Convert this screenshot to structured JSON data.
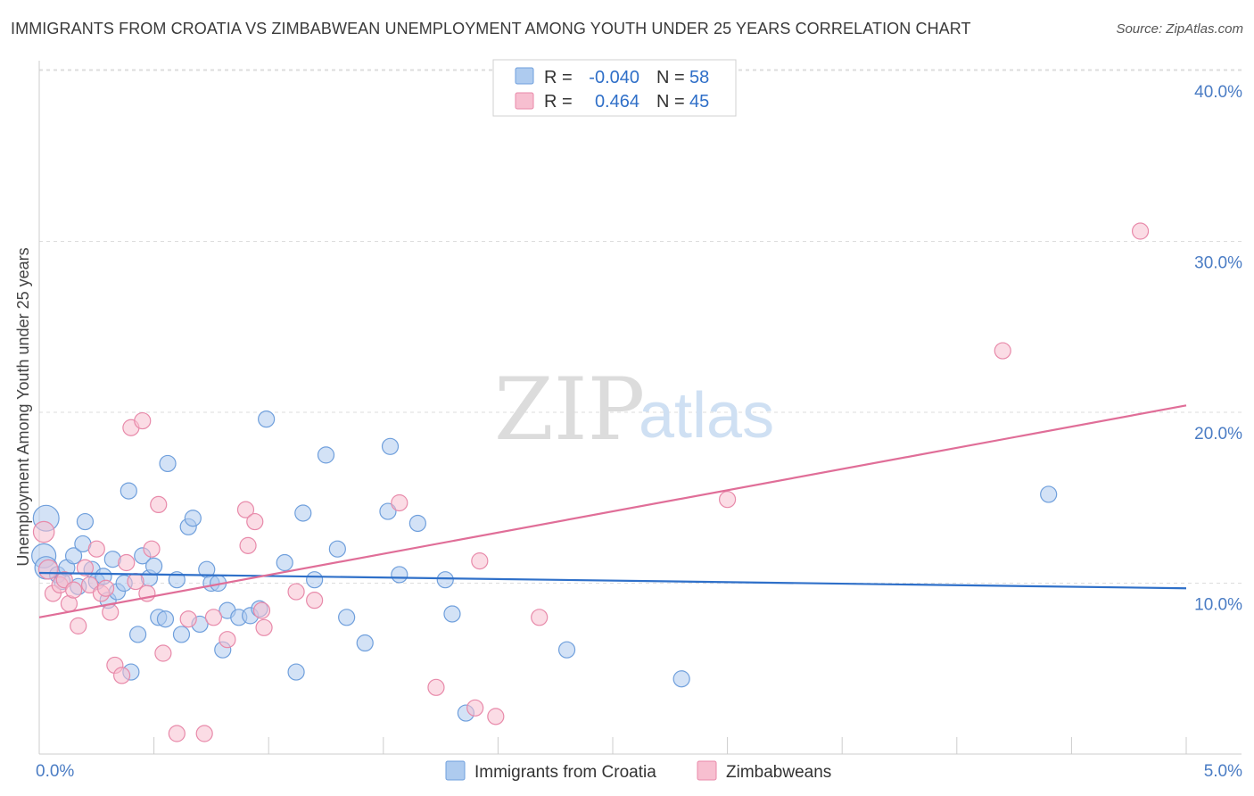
{
  "title": "IMMIGRANTS FROM CROATIA VS ZIMBABWEAN UNEMPLOYMENT AMONG YOUTH UNDER 25 YEARS CORRELATION CHART",
  "source": "Source: ZipAtlas.com",
  "watermark": {
    "zip": "ZIP",
    "atlas": "atlas"
  },
  "colors": {
    "blue_fill": "#aecbef",
    "blue_stroke": "#6f9fdc",
    "blue_line": "#2f70c9",
    "pink_fill": "#f7bfd0",
    "pink_stroke": "#e88aaa",
    "pink_line": "#e06e98",
    "tick_text": "#4a7cc4",
    "grid": "#dddddd"
  },
  "legend": {
    "rows": [
      {
        "r_label": "R =",
        "r_value": "-0.040",
        "n_label": "N =",
        "n_value": "58"
      },
      {
        "r_label": "R =",
        "r_value": "0.464",
        "n_label": "N =",
        "n_value": "45"
      }
    ]
  },
  "chart_data": {
    "type": "scatter",
    "title": "IMMIGRANTS FROM CROATIA VS ZIMBABWEAN UNEMPLOYMENT AMONG YOUTH UNDER 25 YEARS CORRELATION CHART",
    "xlabel": "",
    "ylabel": "Unemployment Among Youth under 25 years",
    "xlim": [
      0,
      5
    ],
    "ylim": [
      0,
      42
    ],
    "x_tick_labels": [
      {
        "value": 0,
        "label": "0.0%"
      },
      {
        "value": 5,
        "label": "5.0%"
      }
    ],
    "y_tick_labels": [
      {
        "value": 10,
        "label": "10.0%"
      },
      {
        "value": 20,
        "label": "20.0%"
      },
      {
        "value": 30,
        "label": "30.0%"
      },
      {
        "value": 40,
        "label": "40.0%"
      }
    ],
    "legend_position": "bottom",
    "series": [
      {
        "name": "Immigrants from Croatia",
        "color_key": "blue",
        "trend": {
          "x": [
            0,
            5
          ],
          "y": [
            10.6,
            9.7
          ]
        },
        "points": [
          {
            "x": 0.03,
            "y": 13.8,
            "s": 1.6
          },
          {
            "x": 0.02,
            "y": 11.6,
            "s": 1.5
          },
          {
            "x": 0.03,
            "y": 10.9,
            "s": 1.4
          },
          {
            "x": 0.08,
            "y": 10.5,
            "s": 1
          },
          {
            "x": 0.1,
            "y": 10.1,
            "s": 1
          },
          {
            "x": 0.12,
            "y": 10.9,
            "s": 1
          },
          {
            "x": 0.15,
            "y": 11.6,
            "s": 1
          },
          {
            "x": 0.17,
            "y": 9.8,
            "s": 1
          },
          {
            "x": 0.19,
            "y": 12.3,
            "s": 1
          },
          {
            "x": 0.2,
            "y": 13.6,
            "s": 1
          },
          {
            "x": 0.23,
            "y": 10.8,
            "s": 1
          },
          {
            "x": 0.25,
            "y": 10.1,
            "s": 1
          },
          {
            "x": 0.28,
            "y": 10.4,
            "s": 1
          },
          {
            "x": 0.3,
            "y": 9.0,
            "s": 1
          },
          {
            "x": 0.32,
            "y": 11.4,
            "s": 1
          },
          {
            "x": 0.34,
            "y": 9.5,
            "s": 1
          },
          {
            "x": 0.37,
            "y": 10.0,
            "s": 1
          },
          {
            "x": 0.39,
            "y": 15.4,
            "s": 1
          },
          {
            "x": 0.43,
            "y": 7.0,
            "s": 1
          },
          {
            "x": 0.45,
            "y": 11.6,
            "s": 1
          },
          {
            "x": 0.48,
            "y": 10.3,
            "s": 1
          },
          {
            "x": 0.5,
            "y": 11.0,
            "s": 1
          },
          {
            "x": 0.52,
            "y": 8.0,
            "s": 1
          },
          {
            "x": 0.55,
            "y": 7.9,
            "s": 1
          },
          {
            "x": 0.4,
            "y": 4.8,
            "s": 1
          },
          {
            "x": 0.6,
            "y": 10.2,
            "s": 1
          },
          {
            "x": 0.62,
            "y": 7.0,
            "s": 1
          },
          {
            "x": 0.65,
            "y": 13.3,
            "s": 1
          },
          {
            "x": 0.67,
            "y": 13.8,
            "s": 1
          },
          {
            "x": 0.56,
            "y": 17.0,
            "s": 1
          },
          {
            "x": 0.7,
            "y": 7.6,
            "s": 1
          },
          {
            "x": 0.73,
            "y": 10.8,
            "s": 1
          },
          {
            "x": 0.75,
            "y": 10.0,
            "s": 1
          },
          {
            "x": 0.78,
            "y": 10.0,
            "s": 1
          },
          {
            "x": 0.8,
            "y": 6.1,
            "s": 1
          },
          {
            "x": 0.82,
            "y": 8.4,
            "s": 1
          },
          {
            "x": 0.87,
            "y": 8.0,
            "s": 1
          },
          {
            "x": 0.92,
            "y": 8.1,
            "s": 1
          },
          {
            "x": 0.96,
            "y": 8.5,
            "s": 1
          },
          {
            "x": 0.99,
            "y": 19.6,
            "s": 1
          },
          {
            "x": 1.07,
            "y": 11.2,
            "s": 1
          },
          {
            "x": 1.12,
            "y": 4.8,
            "s": 1
          },
          {
            "x": 1.15,
            "y": 14.1,
            "s": 1
          },
          {
            "x": 1.2,
            "y": 10.2,
            "s": 1
          },
          {
            "x": 1.25,
            "y": 17.5,
            "s": 1
          },
          {
            "x": 1.3,
            "y": 12.0,
            "s": 1
          },
          {
            "x": 1.34,
            "y": 8.0,
            "s": 1
          },
          {
            "x": 1.42,
            "y": 6.5,
            "s": 1
          },
          {
            "x": 1.52,
            "y": 14.2,
            "s": 1
          },
          {
            "x": 1.53,
            "y": 18.0,
            "s": 1
          },
          {
            "x": 1.57,
            "y": 10.5,
            "s": 1
          },
          {
            "x": 1.65,
            "y": 13.5,
            "s": 1
          },
          {
            "x": 1.77,
            "y": 10.2,
            "s": 1
          },
          {
            "x": 1.8,
            "y": 8.2,
            "s": 1
          },
          {
            "x": 1.86,
            "y": 2.4,
            "s": 1
          },
          {
            "x": 2.3,
            "y": 6.1,
            "s": 1
          },
          {
            "x": 2.8,
            "y": 4.4,
            "s": 1
          },
          {
            "x": 4.4,
            "y": 15.2,
            "s": 1
          }
        ]
      },
      {
        "name": "Zimbabweans",
        "color_key": "pink",
        "trend": {
          "x": [
            0,
            5
          ],
          "y": [
            8.0,
            20.4
          ]
        },
        "points": [
          {
            "x": 0.02,
            "y": 13.0,
            "s": 1.3
          },
          {
            "x": 0.04,
            "y": 10.8,
            "s": 1.2
          },
          {
            "x": 0.06,
            "y": 9.4,
            "s": 1
          },
          {
            "x": 0.09,
            "y": 9.9,
            "s": 1
          },
          {
            "x": 0.11,
            "y": 10.2,
            "s": 1
          },
          {
            "x": 0.13,
            "y": 8.8,
            "s": 1
          },
          {
            "x": 0.15,
            "y": 9.6,
            "s": 1
          },
          {
            "x": 0.17,
            "y": 7.5,
            "s": 1
          },
          {
            "x": 0.2,
            "y": 10.9,
            "s": 1
          },
          {
            "x": 0.22,
            "y": 9.9,
            "s": 1
          },
          {
            "x": 0.25,
            "y": 12.0,
            "s": 1
          },
          {
            "x": 0.27,
            "y": 9.4,
            "s": 1
          },
          {
            "x": 0.29,
            "y": 9.7,
            "s": 1
          },
          {
            "x": 0.31,
            "y": 8.3,
            "s": 1
          },
          {
            "x": 0.33,
            "y": 5.2,
            "s": 1
          },
          {
            "x": 0.36,
            "y": 4.6,
            "s": 1
          },
          {
            "x": 0.38,
            "y": 11.2,
            "s": 1
          },
          {
            "x": 0.4,
            "y": 19.1,
            "s": 1
          },
          {
            "x": 0.42,
            "y": 10.1,
            "s": 1
          },
          {
            "x": 0.45,
            "y": 19.5,
            "s": 1
          },
          {
            "x": 0.47,
            "y": 9.4,
            "s": 1
          },
          {
            "x": 0.49,
            "y": 12.0,
            "s": 1
          },
          {
            "x": 0.52,
            "y": 14.6,
            "s": 1
          },
          {
            "x": 0.54,
            "y": 5.9,
            "s": 1
          },
          {
            "x": 0.6,
            "y": 1.2,
            "s": 1
          },
          {
            "x": 0.65,
            "y": 7.9,
            "s": 1
          },
          {
            "x": 0.72,
            "y": 1.2,
            "s": 1
          },
          {
            "x": 0.76,
            "y": 8.0,
            "s": 1
          },
          {
            "x": 0.82,
            "y": 6.7,
            "s": 1
          },
          {
            "x": 0.9,
            "y": 14.3,
            "s": 1
          },
          {
            "x": 0.91,
            "y": 12.2,
            "s": 1
          },
          {
            "x": 0.94,
            "y": 13.6,
            "s": 1
          },
          {
            "x": 0.97,
            "y": 8.4,
            "s": 1
          },
          {
            "x": 0.98,
            "y": 7.4,
            "s": 1
          },
          {
            "x": 1.12,
            "y": 9.5,
            "s": 1
          },
          {
            "x": 1.2,
            "y": 9.0,
            "s": 1
          },
          {
            "x": 1.57,
            "y": 14.7,
            "s": 1
          },
          {
            "x": 1.73,
            "y": 3.9,
            "s": 1
          },
          {
            "x": 1.9,
            "y": 2.7,
            "s": 1
          },
          {
            "x": 1.92,
            "y": 11.3,
            "s": 1
          },
          {
            "x": 1.99,
            "y": 2.2,
            "s": 1
          },
          {
            "x": 2.18,
            "y": 8.0,
            "s": 1
          },
          {
            "x": 3.0,
            "y": 14.9,
            "s": 1
          },
          {
            "x": 4.2,
            "y": 23.6,
            "s": 1
          },
          {
            "x": 4.8,
            "y": 30.6,
            "s": 1
          }
        ]
      }
    ]
  }
}
